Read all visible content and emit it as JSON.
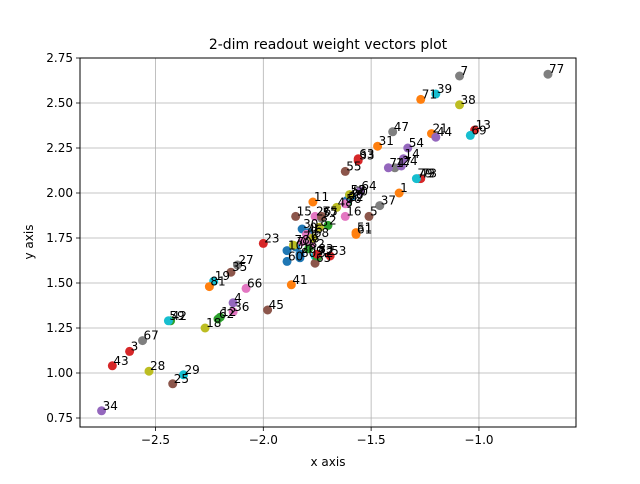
{
  "chart_data": {
    "type": "scatter",
    "title": "2-dim readout weight vectors plot",
    "xlabel": "x axis",
    "ylabel": "y axis",
    "xlim": [
      -2.85,
      -0.55
    ],
    "ylim": [
      0.7,
      2.75
    ],
    "xticks": [
      -2.5,
      -2.0,
      -1.5,
      -1.0
    ],
    "xtick_labels": [
      "−2.5",
      "−2.0",
      "−1.5",
      "−1.0"
    ],
    "yticks": [
      0.75,
      1.0,
      1.25,
      1.5,
      1.75,
      2.0,
      2.25,
      2.5,
      2.75
    ],
    "ytick_labels": [
      "0.75",
      "1.00",
      "1.25",
      "1.50",
      "1.75",
      "2.00",
      "2.25",
      "2.50",
      "2.75"
    ],
    "grid": true,
    "colors": [
      "#1f77b4",
      "#ff7f0e",
      "#2ca02c",
      "#d62728",
      "#9467bd",
      "#8c564b",
      "#e377c2",
      "#7f7f7f",
      "#bcbd22",
      "#17becf"
    ],
    "points": [
      {
        "label": "0",
        "x": -1.79,
        "y": 1.78
      },
      {
        "label": "1",
        "x": -1.37,
        "y": 2.0
      },
      {
        "label": "2",
        "x": -1.7,
        "y": 1.82
      },
      {
        "label": "3",
        "x": -2.62,
        "y": 1.12
      },
      {
        "label": "4",
        "x": -2.14,
        "y": 1.39
      },
      {
        "label": "5",
        "x": -1.51,
        "y": 1.87
      },
      {
        "label": "6",
        "x": -1.78,
        "y": 1.72
      },
      {
        "label": "7",
        "x": -1.09,
        "y": 2.65
      },
      {
        "label": "8",
        "x": -1.74,
        "y": 1.81
      },
      {
        "label": "9",
        "x": -1.76,
        "y": 1.65
      },
      {
        "label": "10",
        "x": -1.89,
        "y": 1.68
      },
      {
        "label": "11",
        "x": -1.77,
        "y": 1.95
      },
      {
        "label": "12",
        "x": -2.2,
        "y": 1.31
      },
      {
        "label": "13",
        "x": -1.02,
        "y": 2.35
      },
      {
        "label": "14",
        "x": -1.35,
        "y": 2.19
      },
      {
        "label": "15",
        "x": -1.85,
        "y": 1.87
      },
      {
        "label": "16",
        "x": -1.62,
        "y": 1.87
      },
      {
        "label": "17",
        "x": -1.39,
        "y": 2.14
      },
      {
        "label": "18",
        "x": -2.27,
        "y": 1.25
      },
      {
        "label": "19",
        "x": -2.23,
        "y": 1.51
      },
      {
        "label": "20",
        "x": -1.83,
        "y": 1.66
      },
      {
        "label": "21",
        "x": -1.22,
        "y": 2.33
      },
      {
        "label": "22",
        "x": -1.61,
        "y": 1.95
      },
      {
        "label": "23",
        "x": -2.0,
        "y": 1.72
      },
      {
        "label": "24",
        "x": -1.36,
        "y": 2.15
      },
      {
        "label": "25",
        "x": -2.42,
        "y": 0.94
      },
      {
        "label": "26",
        "x": -1.76,
        "y": 1.87
      },
      {
        "label": "27",
        "x": -2.12,
        "y": 1.6
      },
      {
        "label": "28",
        "x": -2.53,
        "y": 1.01
      },
      {
        "label": "29",
        "x": -2.37,
        "y": 0.99
      },
      {
        "label": "30",
        "x": -1.82,
        "y": 1.8
      },
      {
        "label": "31",
        "x": -1.47,
        "y": 2.26
      },
      {
        "label": "32",
        "x": -1.75,
        "y": 1.64
      },
      {
        "label": "33",
        "x": -1.56,
        "y": 2.18
      },
      {
        "label": "34",
        "x": -2.75,
        "y": 0.79
      },
      {
        "label": "35",
        "x": -2.15,
        "y": 1.56
      },
      {
        "label": "36",
        "x": -2.14,
        "y": 1.34
      },
      {
        "label": "37",
        "x": -1.46,
        "y": 1.93
      },
      {
        "label": "38",
        "x": -1.09,
        "y": 2.49
      },
      {
        "label": "39",
        "x": -1.2,
        "y": 2.55
      },
      {
        "label": "40",
        "x": -1.61,
        "y": 1.96
      },
      {
        "label": "41",
        "x": -1.87,
        "y": 1.49
      },
      {
        "label": "42",
        "x": -2.43,
        "y": 1.29
      },
      {
        "label": "43",
        "x": -2.7,
        "y": 1.04
      },
      {
        "label": "44",
        "x": -1.2,
        "y": 2.31
      },
      {
        "label": "45",
        "x": -1.98,
        "y": 1.35
      },
      {
        "label": "46",
        "x": -1.8,
        "y": 1.77
      },
      {
        "label": "47",
        "x": -1.4,
        "y": 2.34
      },
      {
        "label": "48",
        "x": -1.66,
        "y": 1.92
      },
      {
        "label": "49",
        "x": -1.28,
        "y": 2.08
      },
      {
        "label": "50",
        "x": -1.59,
        "y": 1.98
      },
      {
        "label": "51",
        "x": -1.57,
        "y": 1.78
      },
      {
        "label": "52",
        "x": -1.6,
        "y": 1.99
      },
      {
        "label": "53",
        "x": -1.69,
        "y": 1.65
      },
      {
        "label": "54",
        "x": -1.33,
        "y": 2.25
      },
      {
        "label": "55",
        "x": -1.62,
        "y": 2.12
      },
      {
        "label": "56",
        "x": -1.62,
        "y": 1.94
      },
      {
        "label": "57",
        "x": -1.73,
        "y": 1.86
      },
      {
        "label": "58",
        "x": -1.6,
        "y": 1.99
      },
      {
        "label": "59",
        "x": -2.44,
        "y": 1.29
      },
      {
        "label": "60",
        "x": -1.89,
        "y": 1.62
      },
      {
        "label": "61",
        "x": -1.57,
        "y": 1.77
      },
      {
        "label": "62",
        "x": -2.21,
        "y": 1.3
      },
      {
        "label": "63",
        "x": -1.56,
        "y": 2.19
      },
      {
        "label": "64",
        "x": -1.55,
        "y": 2.01
      },
      {
        "label": "65",
        "x": -1.76,
        "y": 1.61
      },
      {
        "label": "66",
        "x": -2.08,
        "y": 1.47
      },
      {
        "label": "67",
        "x": -2.56,
        "y": 1.18
      },
      {
        "label": "68",
        "x": -1.77,
        "y": 1.75
      },
      {
        "label": "69",
        "x": -1.04,
        "y": 2.32
      },
      {
        "label": "70",
        "x": -1.85,
        "y": 1.7
      },
      {
        "label": "71",
        "x": -1.27,
        "y": 2.52
      },
      {
        "label": "72",
        "x": -1.75,
        "y": 1.65
      },
      {
        "label": "73",
        "x": -1.27,
        "y": 2.08
      },
      {
        "label": "74",
        "x": -1.42,
        "y": 2.14
      },
      {
        "label": "75",
        "x": -1.73,
        "y": 1.87
      },
      {
        "label": "76",
        "x": -1.82,
        "y": 1.73
      },
      {
        "label": "77",
        "x": -0.68,
        "y": 2.66
      },
      {
        "label": "78",
        "x": -1.86,
        "y": 1.71
      },
      {
        "label": "79",
        "x": -1.29,
        "y": 2.08
      },
      {
        "label": "80",
        "x": -1.83,
        "y": 1.64
      },
      {
        "label": "81",
        "x": -2.25,
        "y": 1.48
      },
      {
        "label": "82",
        "x": -1.79,
        "y": 1.69
      },
      {
        "label": "83",
        "x": -1.75,
        "y": 1.66
      }
    ]
  }
}
